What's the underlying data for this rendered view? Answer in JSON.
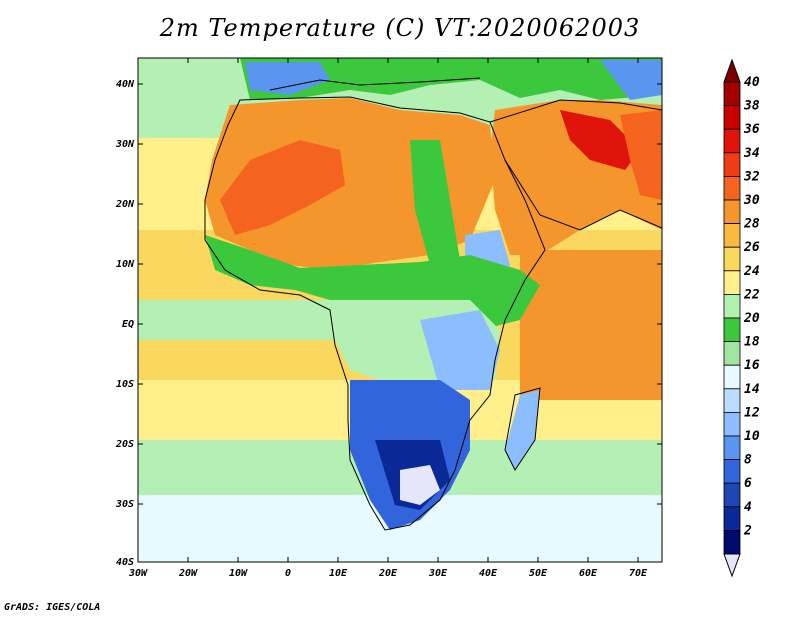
{
  "title": "2m Temperature (C) VT:2020062003",
  "footer": "GrADS: IGES/COLA",
  "lat_labels": [
    "40N",
    "30N",
    "20N",
    "10N",
    "EQ",
    "10S",
    "20S",
    "30S",
    "40S"
  ],
  "lon_labels": [
    "30W",
    "20W",
    "10W",
    "0",
    "10E",
    "20E",
    "30E",
    "40E",
    "50E",
    "60E",
    "70E"
  ],
  "colorbar": {
    "labels": [
      "40",
      "38",
      "36",
      "34",
      "32",
      "30",
      "28",
      "26",
      "24",
      "22",
      "20",
      "18",
      "16",
      "14",
      "12",
      "10",
      "8",
      "6",
      "4",
      "2"
    ],
    "colors": [
      "#a50000",
      "#c80000",
      "#e0140a",
      "#f03c14",
      "#f5641e",
      "#f5962d",
      "#faba41",
      "#fad75f",
      "#fff08c",
      "#b4f0b4",
      "#3cc83c",
      "#a0e6a0",
      "#e6faff",
      "#b9dcff",
      "#8cbeff",
      "#5a96f0",
      "#3264dc",
      "#1e46b4",
      "#0a2896",
      "#000a6e"
    ],
    "top_color": "#7d0000",
    "bottom_color": "#e6e6fa"
  },
  "field_colors": {
    "sea_warm": "#fad75f",
    "sea_mid": "#fff08c",
    "sea_cool": "#b4f0b4",
    "sea_cold": "#e6faff",
    "sahara": "#f5962d",
    "sahara_hot": "#f5641e",
    "arabia_hot": "#e0140a",
    "savanna": "#3cc83c",
    "highland": "#8cbeff",
    "south_cold": "#3264dc",
    "south_colder": "#0a2896",
    "snow": "#e6e6fa",
    "europe": "#3cc83c",
    "alps": "#5a96f0"
  }
}
